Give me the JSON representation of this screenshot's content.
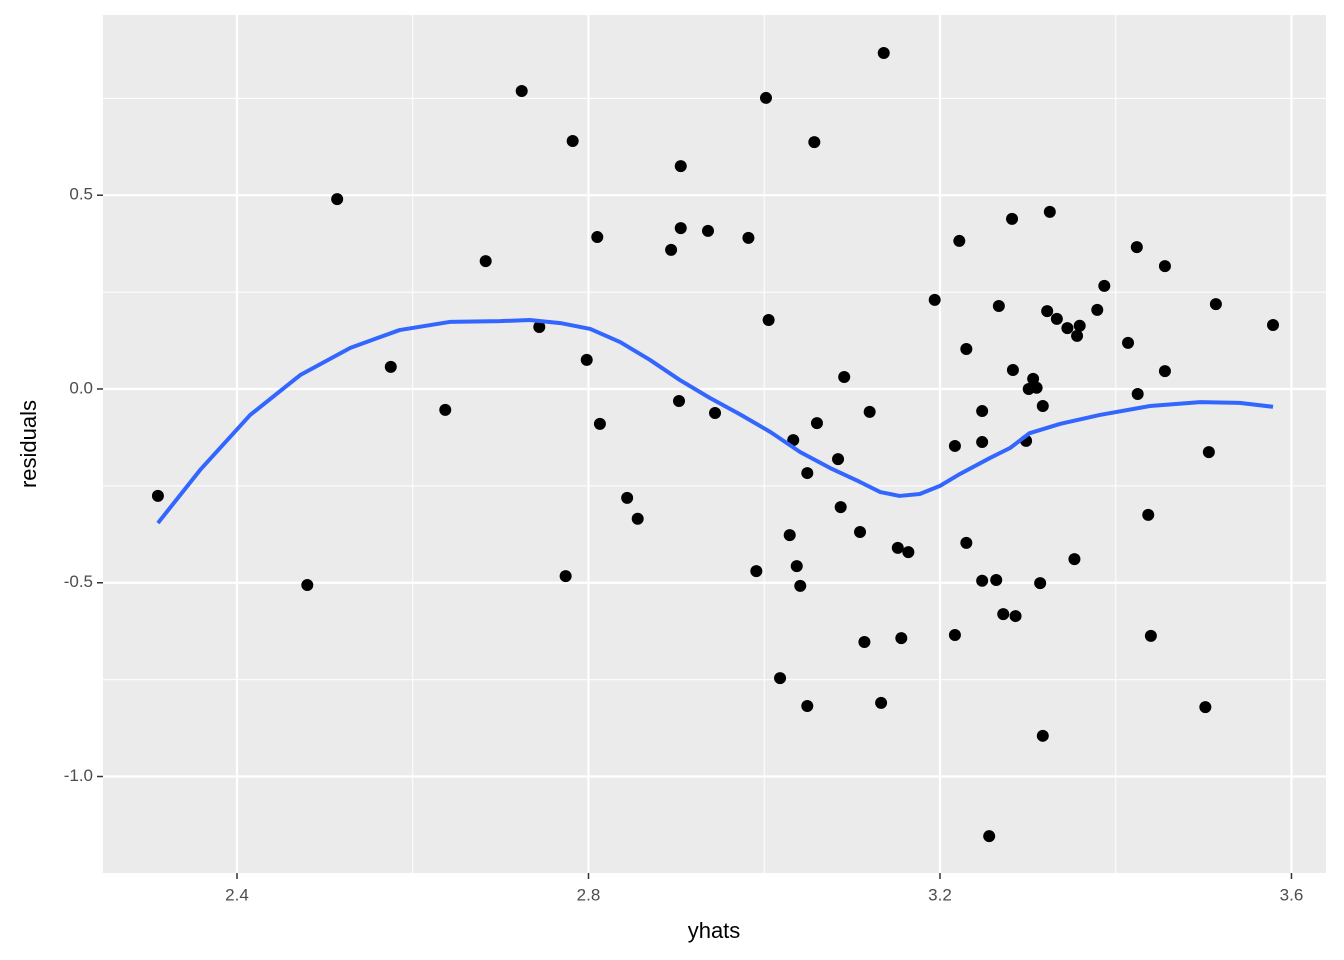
{
  "chart_data": {
    "type": "scatter",
    "xlabel": "yhats",
    "ylabel": "residuals",
    "xlim": [
      2.2475,
      3.6393
    ],
    "ylim": [
      -1.249,
      0.965
    ],
    "xticks": [
      2.4,
      2.8,
      3.2,
      3.6
    ],
    "yticks": [
      0.5,
      {
        "value": 0,
        "label": "0.0"
      },
      -0.5,
      {
        "value": -1,
        "label": "-1.0"
      }
    ],
    "x_minor_grid": [
      2.6,
      3.0,
      3.4
    ],
    "y_minor_grid": [
      0.75,
      0.25,
      -0.25,
      -0.75
    ],
    "grid": true,
    "panel_color": "#ebebeb",
    "points": {
      "color": "#000000",
      "x": [
        2.31,
        2.48,
        2.514,
        2.575,
        2.637,
        2.683,
        2.724,
        2.744,
        2.774,
        2.782,
        2.798,
        2.81,
        2.813,
        2.844,
        2.856,
        2.894,
        2.903,
        2.905,
        2.905,
        2.936,
        2.944,
        2.982,
        2.991,
        3.002,
        3.005,
        3.018,
        3.029,
        3.033,
        3.037,
        3.041,
        3.049,
        3.049,
        3.057,
        3.06,
        3.084,
        3.087,
        3.091,
        3.109,
        3.114,
        3.12,
        3.133,
        3.136,
        3.152,
        3.156,
        3.164,
        3.194,
        3.217,
        3.217,
        3.222,
        3.23,
        3.23,
        3.248,
        3.248,
        3.248,
        3.256,
        3.264,
        3.267,
        3.272,
        3.282,
        3.283,
        3.286,
        3.298,
        3.301,
        3.306,
        3.31,
        3.314,
        3.317,
        3.317,
        3.322,
        3.325,
        3.333,
        3.345,
        3.353,
        3.356,
        3.359,
        3.379,
        3.387,
        3.414,
        3.424,
        3.425,
        3.437,
        3.44,
        3.456,
        3.456,
        3.502,
        3.506,
        3.514,
        3.579
      ],
      "y": [
        -0.276,
        -0.506,
        0.49,
        0.057,
        -0.054,
        0.33,
        0.769,
        0.16,
        -0.483,
        0.64,
        0.075,
        0.392,
        -0.09,
        -0.281,
        -0.335,
        0.359,
        -0.031,
        0.415,
        0.575,
        0.408,
        -0.062,
        0.39,
        -0.47,
        0.751,
        0.178,
        -0.746,
        -0.377,
        -0.132,
        -0.457,
        -0.508,
        -0.217,
        -0.818,
        0.637,
        -0.088,
        -0.181,
        -0.305,
        0.031,
        -0.369,
        -0.653,
        -0.059,
        -0.81,
        0.867,
        -0.41,
        -0.643,
        -0.421,
        0.23,
        -0.147,
        -0.635,
        0.382,
        -0.397,
        0.103,
        -0.057,
        -0.137,
        -0.495,
        -1.154,
        -0.493,
        0.214,
        -0.581,
        0.439,
        0.049,
        -0.586,
        -0.134,
        0.0,
        0.026,
        0.003,
        -0.501,
        -0.044,
        -0.895,
        0.201,
        0.457,
        0.181,
        0.157,
        -0.439,
        0.137,
        0.163,
        0.204,
        0.266,
        0.119,
        0.366,
        -0.013,
        -0.325,
        -0.637,
        0.317,
        0.046,
        -0.821,
        -0.163,
        0.219,
        0.165
      ]
    },
    "smooth": {
      "color": "#3366ff",
      "x": [
        2.31,
        2.358,
        2.415,
        2.472,
        2.529,
        2.585,
        2.642,
        2.699,
        2.733,
        2.768,
        2.802,
        2.836,
        2.87,
        2.904,
        2.938,
        2.972,
        3.007,
        3.041,
        3.075,
        3.109,
        3.132,
        3.154,
        3.177,
        3.2,
        3.223,
        3.257,
        3.28,
        3.302,
        3.337,
        3.382,
        3.439,
        3.496,
        3.541,
        3.579
      ],
      "y": [
        -0.346,
        -0.209,
        -0.067,
        0.036,
        0.106,
        0.152,
        0.173,
        0.175,
        0.178,
        0.17,
        0.155,
        0.121,
        0.075,
        0.023,
        -0.023,
        -0.065,
        -0.111,
        -0.163,
        -0.204,
        -0.24,
        -0.266,
        -0.276,
        -0.271,
        -0.25,
        -0.219,
        -0.178,
        -0.152,
        -0.114,
        -0.09,
        -0.067,
        -0.044,
        -0.034,
        -0.036,
        -0.046
      ]
    }
  }
}
